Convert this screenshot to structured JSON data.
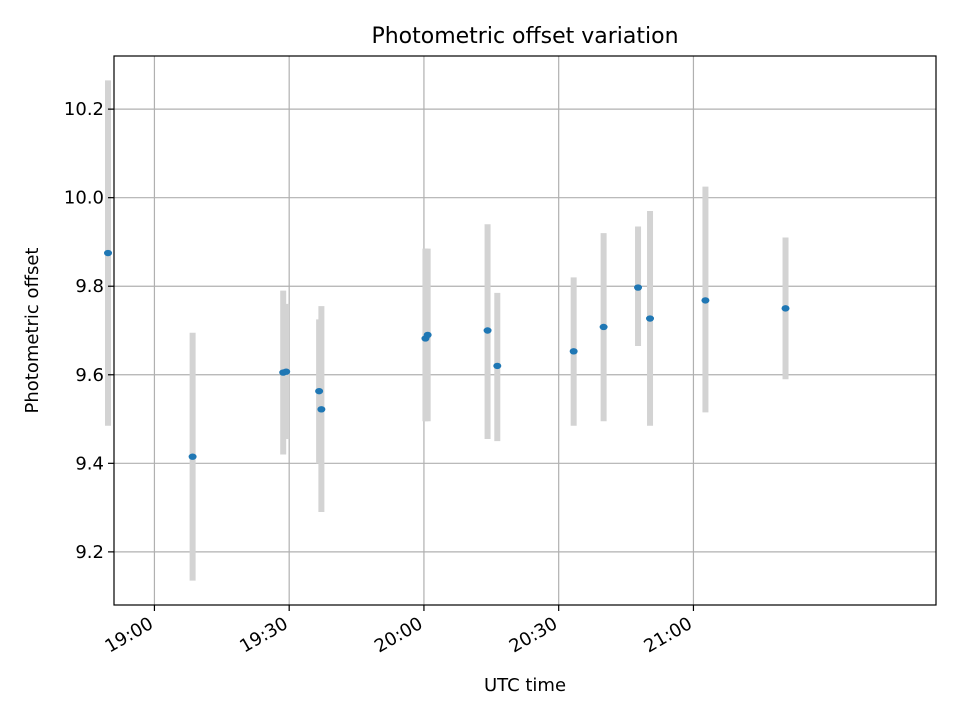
{
  "chart_data": {
    "type": "scatter",
    "title": "Photometric offset variation",
    "xlabel": "UTC time",
    "ylabel": "Photometric offset",
    "xlim": [
      "18:51",
      "21:54"
    ],
    "ylim": [
      9.08,
      10.32
    ],
    "x_ticks": [
      "19:00",
      "19:30",
      "20:00",
      "20:30",
      "21:00"
    ],
    "y_ticks": [
      "9.2",
      "9.4",
      "9.6",
      "9.8",
      "10.0",
      "10.2"
    ],
    "grid": true,
    "marker_color": "#1f77b4",
    "errorbar_color": "#d3d3d3",
    "points": [
      {
        "x": "18:49:40",
        "y": 9.875,
        "ylow": 9.485,
        "yhigh": 10.265
      },
      {
        "x": "19:08:30",
        "y": 9.415,
        "ylow": 9.135,
        "yhigh": 9.695
      },
      {
        "x": "19:28:40",
        "y": 9.605,
        "ylow": 9.42,
        "yhigh": 9.79
      },
      {
        "x": "19:29:20",
        "y": 9.607,
        "ylow": 9.455,
        "yhigh": 9.76
      },
      {
        "x": "19:36:40",
        "y": 9.563,
        "ylow": 9.4,
        "yhigh": 9.725
      },
      {
        "x": "19:37:10",
        "y": 9.522,
        "ylow": 9.29,
        "yhigh": 9.755
      },
      {
        "x": "20:00:20",
        "y": 9.682,
        "ylow": 9.495,
        "yhigh": 9.885
      },
      {
        "x": "20:00:50",
        "y": 9.69,
        "ylow": 9.495,
        "yhigh": 9.885
      },
      {
        "x": "20:14:10",
        "y": 9.7,
        "ylow": 9.455,
        "yhigh": 9.94
      },
      {
        "x": "20:16:20",
        "y": 9.62,
        "ylow": 9.45,
        "yhigh": 9.785
      },
      {
        "x": "20:33:20",
        "y": 9.653,
        "ylow": 9.485,
        "yhigh": 9.82
      },
      {
        "x": "20:40:00",
        "y": 9.708,
        "ylow": 9.495,
        "yhigh": 9.92
      },
      {
        "x": "20:47:40",
        "y": 9.797,
        "ylow": 9.665,
        "yhigh": 9.935
      },
      {
        "x": "20:50:20",
        "y": 9.727,
        "ylow": 9.485,
        "yhigh": 9.97
      },
      {
        "x": "21:02:40",
        "y": 9.768,
        "ylow": 9.515,
        "yhigh": 10.025
      },
      {
        "x": "21:20:30",
        "y": 9.75,
        "ylow": 9.59,
        "yhigh": 9.91
      }
    ]
  }
}
